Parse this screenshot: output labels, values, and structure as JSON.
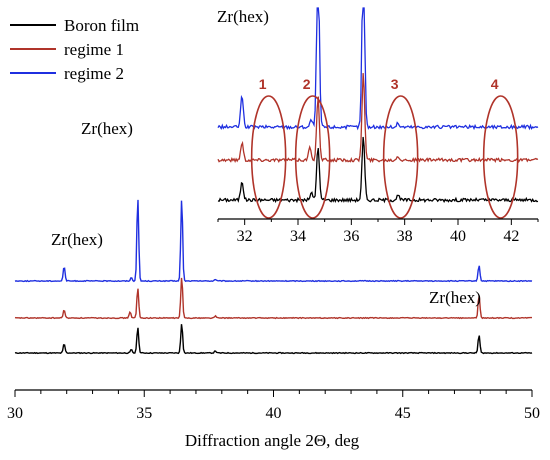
{
  "chart_data": {
    "type": "line",
    "xlabel": "Diffraction angle 2Θ, deg",
    "ylabel": "",
    "xlim": [
      30,
      50
    ],
    "x_ticks": [
      30,
      35,
      40,
      45,
      50
    ],
    "grid": false,
    "legend_position": "top-left",
    "series": [
      {
        "name": "Boron film",
        "color": "#000000",
        "baseline": 0.0,
        "peaks": [
          [
            31.9,
            0.22
          ],
          [
            34.5,
            0.08
          ],
          [
            34.75,
            0.62
          ],
          [
            36.45,
            0.72
          ],
          [
            37.75,
            0.05
          ],
          [
            47.95,
            0.43
          ]
        ]
      },
      {
        "name": "regime 1",
        "color": "#b0342a",
        "baseline": 1.0,
        "peaks": [
          [
            31.9,
            0.2
          ],
          [
            34.45,
            0.15
          ],
          [
            34.75,
            0.72
          ],
          [
            36.45,
            1.0
          ],
          [
            37.75,
            0.05
          ],
          [
            47.95,
            0.55
          ]
        ]
      },
      {
        "name": "regime 2",
        "color": "#1f2fe0",
        "baseline": 2.0,
        "peaks": [
          [
            31.9,
            0.35
          ],
          [
            34.5,
            0.08
          ],
          [
            34.75,
            2.0
          ],
          [
            36.45,
            2.0
          ],
          [
            37.75,
            0.04
          ],
          [
            47.95,
            0.38
          ]
        ]
      }
    ],
    "annotations": [
      {
        "text": "Zr(hex)",
        "x": 31.9
      },
      {
        "text": "Zr(hex)",
        "x": 34.75
      },
      {
        "text": "Zr(hex)",
        "x": 36.45
      },
      {
        "text": "Zr(hex)",
        "x": 47.95
      }
    ],
    "inset": {
      "xlim": [
        31,
        43
      ],
      "x_ticks": [
        32,
        34,
        36,
        38,
        40,
        42
      ],
      "regions": [
        {
          "label": "1",
          "x": 32.9
        },
        {
          "label": "2",
          "x": 34.55
        },
        {
          "label": "3",
          "x": 37.85
        },
        {
          "label": "4",
          "x": 41.6
        }
      ]
    }
  }
}
